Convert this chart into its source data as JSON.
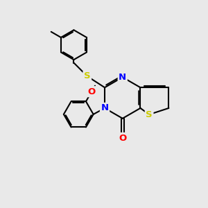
{
  "background_color": "#e9e9e9",
  "atom_colors": {
    "N": "#0000ff",
    "O": "#ff0000",
    "S": "#cccc00"
  },
  "bond_color": "#000000",
  "bond_width": 1.5,
  "figsize": [
    3.0,
    3.0
  ],
  "dpi": 100
}
